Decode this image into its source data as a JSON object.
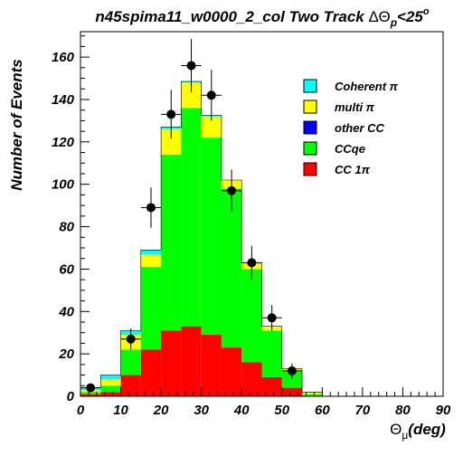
{
  "chart_data": {
    "type": "bar",
    "stacked": true,
    "title_main": "n45spima11_w0000_2_col Two Track ",
    "title_math": "ΔΘ",
    "title_sub": "p",
    "title_tail": "<25",
    "title_sup": "o",
    "xlabel_main": "Θ",
    "xlabel_sub": "μ",
    "xlabel_tail": "(deg)",
    "ylabel": "Number of Events",
    "xlim": [
      0,
      90
    ],
    "ylim": [
      0,
      172
    ],
    "xticks": [
      0,
      10,
      20,
      30,
      40,
      50,
      60,
      70,
      80,
      90
    ],
    "yticks": [
      0,
      20,
      40,
      60,
      80,
      100,
      120,
      140,
      160
    ],
    "bin_edges": [
      0,
      5,
      10,
      15,
      20,
      25,
      30,
      35,
      40,
      45,
      50,
      55,
      60
    ],
    "series": [
      {
        "name": "CC 1π",
        "color": "#ff0000",
        "values": [
          1,
          2,
          10,
          22,
          31,
          33,
          29,
          23,
          16,
          9,
          4,
          0
        ]
      },
      {
        "name": "CCqe",
        "color": "#00ff00",
        "values": [
          1,
          3,
          12,
          39,
          83,
          103,
          93,
          75,
          44,
          22,
          8,
          1
        ]
      },
      {
        "name": "other CC",
        "color": "#0000ff",
        "values": [
          0,
          0,
          0,
          0,
          0,
          0,
          0,
          0,
          0,
          0,
          0,
          0
        ]
      },
      {
        "name": "multi π",
        "color": "#ffff00",
        "values": [
          1,
          3,
          7,
          6,
          12,
          12,
          10,
          4,
          3,
          2,
          1,
          1
        ]
      },
      {
        "name": "Coherent π",
        "color": "#00ffff",
        "values": [
          1,
          2,
          2,
          2,
          1,
          0.5,
          0.5,
          0,
          0,
          0,
          0,
          0
        ]
      }
    ],
    "data_points": [
      {
        "x": 2.5,
        "y": 4,
        "err": 2
      },
      {
        "x": 12.5,
        "y": 27,
        "err": 5
      },
      {
        "x": 17.5,
        "y": 89,
        "err": 9.5
      },
      {
        "x": 22.5,
        "y": 133,
        "err": 11.5
      },
      {
        "x": 27.5,
        "y": 156,
        "err": 12.5
      },
      {
        "x": 32.5,
        "y": 142,
        "err": 12
      },
      {
        "x": 37.5,
        "y": 97,
        "err": 10
      },
      {
        "x": 42.5,
        "y": 63,
        "err": 8
      },
      {
        "x": 47.5,
        "y": 37,
        "err": 6
      },
      {
        "x": 52.5,
        "y": 12,
        "err": 3.5
      }
    ],
    "legend": [
      {
        "label": "Coherent π",
        "color": "#00ffff"
      },
      {
        "label": "multi π",
        "color": "#ffff00"
      },
      {
        "label": "other CC",
        "color": "#0000ff"
      },
      {
        "label": "CCqe",
        "color": "#00ff00"
      },
      {
        "label": "CC 1π",
        "color": "#ff0000"
      }
    ],
    "legend_position": "top-right",
    "grid": false
  }
}
